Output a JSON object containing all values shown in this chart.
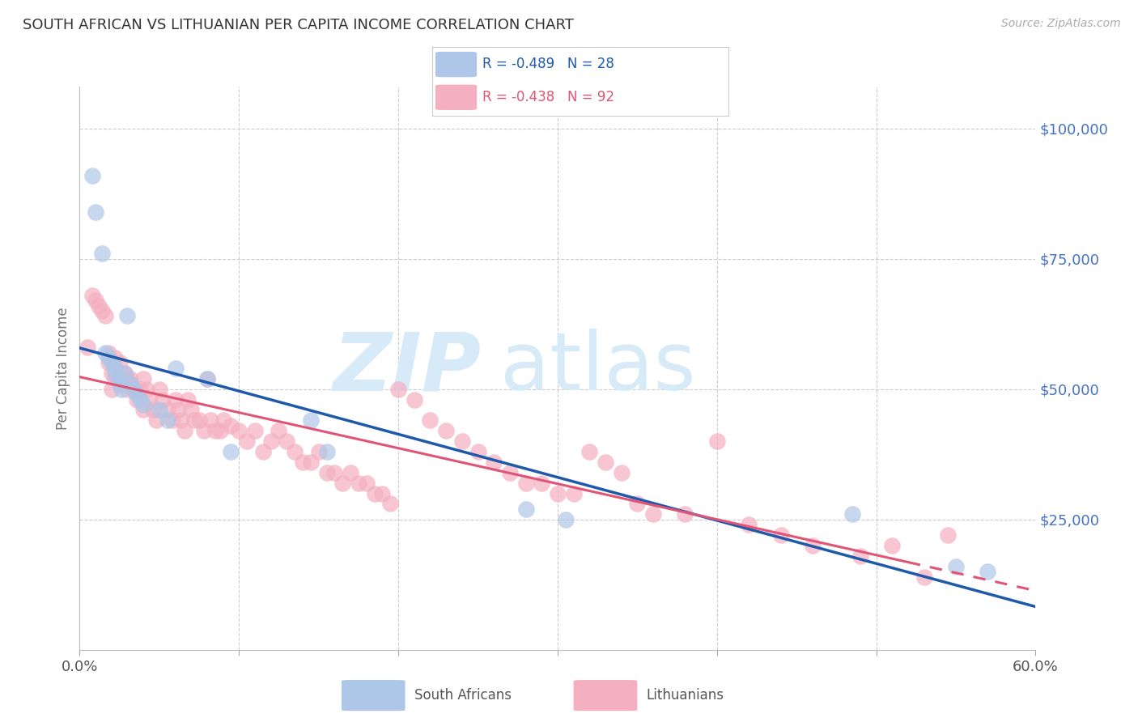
{
  "title": "SOUTH AFRICAN VS LITHUANIAN PER CAPITA INCOME CORRELATION CHART",
  "source": "Source: ZipAtlas.com",
  "ylabel": "Per Capita Income",
  "xlim": [
    0.0,
    0.6
  ],
  "ylim": [
    0,
    108000
  ],
  "yticks": [
    0,
    25000,
    50000,
    75000,
    100000
  ],
  "ytick_labels": [
    "",
    "$25,000",
    "$50,000",
    "$75,000",
    "$100,000"
  ],
  "xticks": [
    0.0,
    0.1,
    0.2,
    0.3,
    0.4,
    0.5,
    0.6
  ],
  "xtick_labels": [
    "0.0%",
    "",
    "",
    "",
    "",
    "",
    "60.0%"
  ],
  "background_color": "#ffffff",
  "grid_color": "#cccccc",
  "title_color": "#333333",
  "right_tick_color": "#4472c4",
  "watermark_color": "#d6eaf8",
  "blue_color": "#aec6e8",
  "pink_color": "#f4afc0",
  "blue_line_color": "#1f5aaa",
  "pink_line_color": "#e05575",
  "south_african_x": [
    0.008,
    0.01,
    0.014,
    0.016,
    0.018,
    0.02,
    0.022,
    0.022,
    0.024,
    0.025,
    0.026,
    0.028,
    0.03,
    0.032,
    0.034,
    0.036,
    0.038,
    0.04,
    0.05,
    0.055,
    0.06,
    0.08,
    0.095,
    0.145,
    0.155,
    0.28,
    0.305,
    0.485,
    0.55,
    0.57
  ],
  "south_african_y": [
    91000,
    84000,
    76000,
    57000,
    56000,
    55000,
    54000,
    53000,
    52000,
    51000,
    50000,
    53000,
    64000,
    51000,
    50000,
    49000,
    48000,
    47000,
    46000,
    44000,
    54000,
    52000,
    38000,
    44000,
    38000,
    27000,
    25000,
    26000,
    16000,
    15000
  ],
  "lithuanian_x": [
    0.005,
    0.008,
    0.01,
    0.012,
    0.014,
    0.016,
    0.018,
    0.018,
    0.02,
    0.02,
    0.022,
    0.022,
    0.025,
    0.026,
    0.028,
    0.03,
    0.03,
    0.032,
    0.034,
    0.036,
    0.038,
    0.04,
    0.04,
    0.042,
    0.044,
    0.046,
    0.048,
    0.05,
    0.052,
    0.055,
    0.058,
    0.06,
    0.062,
    0.064,
    0.066,
    0.068,
    0.07,
    0.072,
    0.075,
    0.078,
    0.08,
    0.082,
    0.085,
    0.088,
    0.09,
    0.095,
    0.1,
    0.105,
    0.11,
    0.115,
    0.12,
    0.125,
    0.13,
    0.135,
    0.14,
    0.145,
    0.15,
    0.155,
    0.16,
    0.165,
    0.17,
    0.175,
    0.18,
    0.185,
    0.19,
    0.195,
    0.2,
    0.21,
    0.22,
    0.23,
    0.24,
    0.25,
    0.26,
    0.27,
    0.28,
    0.29,
    0.3,
    0.31,
    0.32,
    0.33,
    0.34,
    0.35,
    0.36,
    0.38,
    0.4,
    0.42,
    0.44,
    0.46,
    0.49,
    0.51,
    0.53,
    0.545
  ],
  "lithuanian_y": [
    58000,
    68000,
    67000,
    66000,
    65000,
    64000,
    57000,
    55000,
    53000,
    50000,
    56000,
    52000,
    55000,
    53000,
    53000,
    52000,
    50000,
    52000,
    50000,
    48000,
    50000,
    52000,
    46000,
    50000,
    48000,
    46000,
    44000,
    50000,
    48000,
    46000,
    44000,
    48000,
    46000,
    44000,
    42000,
    48000,
    46000,
    44000,
    44000,
    42000,
    52000,
    44000,
    42000,
    42000,
    44000,
    43000,
    42000,
    40000,
    42000,
    38000,
    40000,
    42000,
    40000,
    38000,
    36000,
    36000,
    38000,
    34000,
    34000,
    32000,
    34000,
    32000,
    32000,
    30000,
    30000,
    28000,
    50000,
    48000,
    44000,
    42000,
    40000,
    38000,
    36000,
    34000,
    32000,
    32000,
    30000,
    30000,
    38000,
    36000,
    34000,
    28000,
    26000,
    26000,
    40000,
    24000,
    22000,
    20000,
    18000,
    20000,
    14000,
    22000
  ]
}
